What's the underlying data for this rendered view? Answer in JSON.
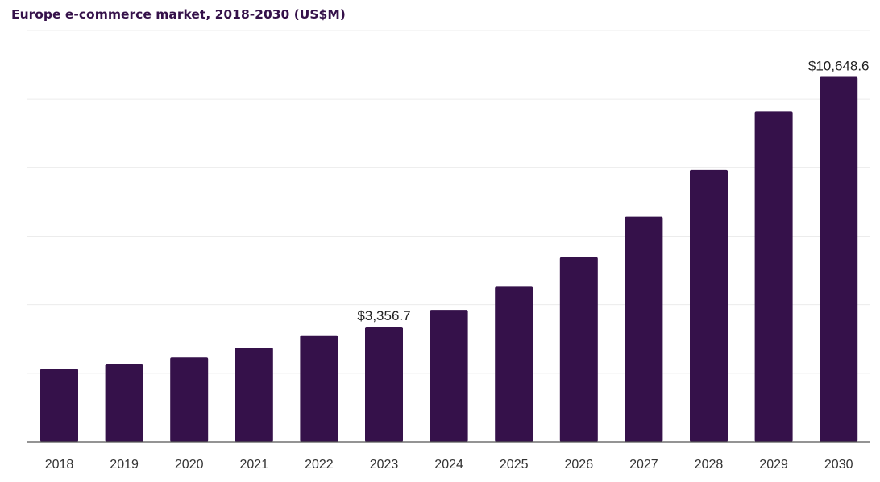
{
  "chart_data": {
    "type": "bar",
    "title": "Europe e-commerce market, 2018-2030 (US$M)",
    "xlabel": "",
    "ylabel": "",
    "categories": [
      "2018",
      "2019",
      "2020",
      "2021",
      "2022",
      "2023",
      "2024",
      "2025",
      "2026",
      "2027",
      "2028",
      "2029",
      "2030"
    ],
    "values": [
      2132,
      2277,
      2461,
      2749,
      3105,
      3356.7,
      3849,
      4523,
      5384,
      6561,
      7939,
      9642,
      10648.6
    ],
    "data_labels": [
      {
        "index": 5,
        "text": "$3,356.7"
      },
      {
        "index": 12,
        "text": "$10,648.6"
      }
    ],
    "ylim": [
      0,
      12000
    ],
    "grid": true,
    "gridlines": [
      2000,
      4000,
      6000,
      8000,
      10000,
      12000
    ],
    "legend": "none",
    "colors": {
      "bar": "#35114a",
      "title": "#35114a",
      "grid": "#ececec",
      "axis": "#555555"
    }
  }
}
